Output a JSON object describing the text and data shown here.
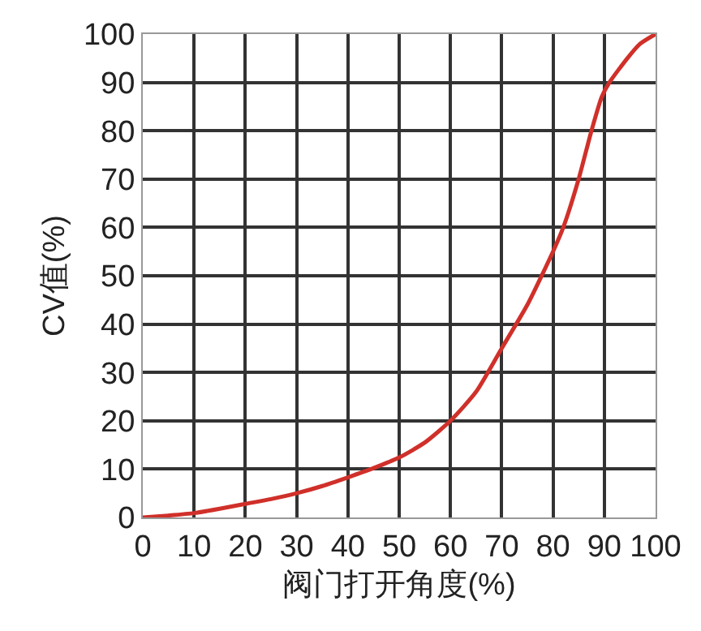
{
  "chart_data": {
    "type": "line",
    "xlabel": "阀门打开角度(%)",
    "ylabel": "CV值(%)",
    "x": [
      0,
      5,
      10,
      15,
      20,
      25,
      30,
      35,
      40,
      45,
      50,
      55,
      60,
      65,
      70,
      75,
      80,
      82,
      85,
      87.5,
      89.5,
      91,
      94.5,
      97,
      100
    ],
    "series": [
      {
        "color": "#d0302a",
        "values": [
          0,
          0.4,
          0.9,
          1.8,
          2.8,
          3.8,
          5,
          6.5,
          8.3,
          10.2,
          12.4,
          15.5,
          20,
          26,
          35,
          44,
          55,
          60,
          70,
          80,
          87,
          90,
          95,
          98,
          100
        ]
      }
    ],
    "xlim": [
      0,
      100
    ],
    "ylim": [
      0,
      100
    ],
    "xticks": [
      0,
      10,
      20,
      30,
      40,
      50,
      60,
      70,
      80,
      90,
      100
    ],
    "yticks": [
      0,
      10,
      20,
      30,
      40,
      50,
      60,
      70,
      80,
      90,
      100
    ],
    "grid": true,
    "marker": "none",
    "line_style": "solid"
  }
}
